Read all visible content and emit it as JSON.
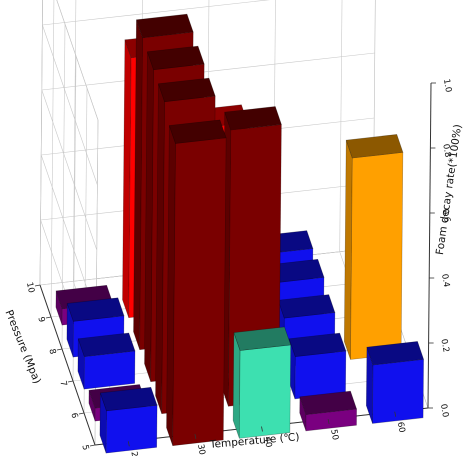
{
  "chart_data": {
    "type": "bar3d",
    "title": "",
    "xlabel": "Temperature (℃)",
    "ylabel": "Pressure (Mpa)",
    "zlabel": "Foam decay rate(*100%)",
    "x_ticks": [
      "20",
      "30",
      "40",
      "50",
      "60"
    ],
    "y_ticks": [
      "5",
      "6",
      "7",
      "8",
      "9",
      "10"
    ],
    "z_ticks": [
      "0.0",
      "0.2",
      "0.4",
      "0.6",
      "0.8",
      "1.0"
    ],
    "x_range": [
      15,
      65
    ],
    "y_range": [
      5,
      10
    ],
    "z_range": [
      0,
      1
    ],
    "grid": true,
    "bars": [
      {
        "x": 30,
        "y": 9,
        "value": 0.8,
        "color": "#ff0000"
      },
      {
        "x": 30,
        "y": 8,
        "value": 0.96,
        "color": "#7a0000"
      },
      {
        "x": 30,
        "y": 7,
        "value": 0.96,
        "color": "#7a0000"
      },
      {
        "x": 30,
        "y": 6,
        "value": 0.96,
        "color": "#7a0000"
      },
      {
        "x": 30,
        "y": 5,
        "value": 0.93,
        "color": "#7a0000"
      },
      {
        "x": 40,
        "y": 9,
        "value": 0.56,
        "color": "#ff0000"
      },
      {
        "x": 40,
        "y": 6,
        "value": 0.85,
        "color": "#7a0000"
      },
      {
        "x": 40,
        "y": 7,
        "value": 0.33,
        "color": "#3de0b0"
      },
      {
        "x": 40,
        "y": 5,
        "value": 0.27,
        "color": "#3de0b0"
      },
      {
        "x": 20,
        "y": 9,
        "value": 0.05,
        "color": "#7a0080"
      },
      {
        "x": 20,
        "y": 8,
        "value": 0.11,
        "color": "#1010ee"
      },
      {
        "x": 20,
        "y": 7,
        "value": 0.1,
        "color": "#1010ee"
      },
      {
        "x": 20,
        "y": 6,
        "value": 0.04,
        "color": "#7a0080"
      },
      {
        "x": 20,
        "y": 5,
        "value": 0.13,
        "color": "#1010ee"
      },
      {
        "x": 50,
        "y": 9,
        "value": 0.15,
        "color": "#1010ee"
      },
      {
        "x": 50,
        "y": 8,
        "value": 0.16,
        "color": "#1010ee"
      },
      {
        "x": 50,
        "y": 7,
        "value": 0.15,
        "color": "#1010ee"
      },
      {
        "x": 50,
        "y": 6,
        "value": 0.13,
        "color": "#1010ee"
      },
      {
        "x": 50,
        "y": 5,
        "value": 0.05,
        "color": "#7a0080"
      },
      {
        "x": 60,
        "y": 7,
        "value": 0.62,
        "color": "#ffa000"
      },
      {
        "x": 60,
        "y": 5,
        "value": 0.18,
        "color": "#1010ee"
      }
    ]
  }
}
